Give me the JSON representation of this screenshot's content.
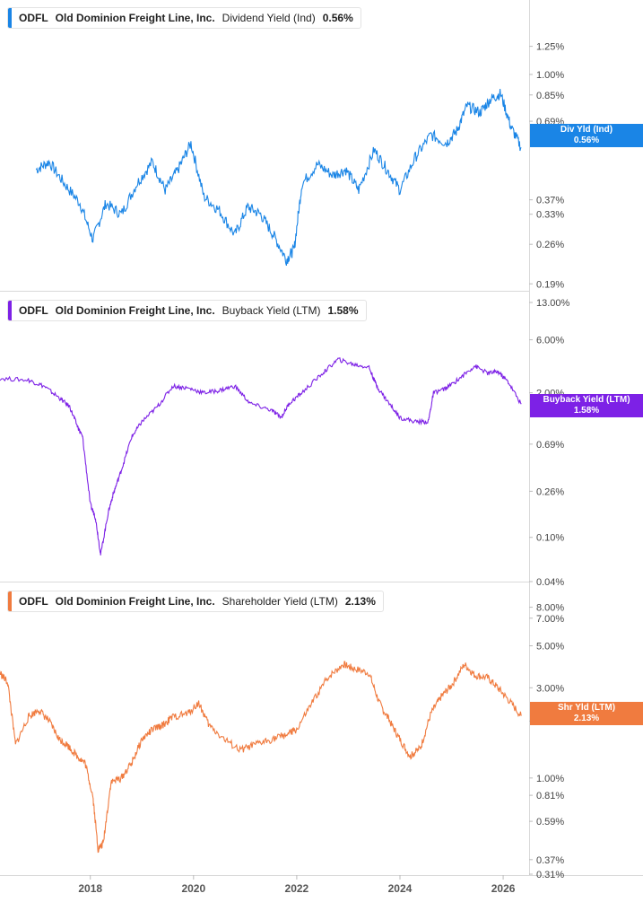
{
  "ticker": "ODFL",
  "company": "Old Dominion Freight Line, Inc.",
  "x_axis": {
    "ticks": [
      "2018",
      "2020",
      "2022",
      "2024",
      "2026"
    ]
  },
  "chart_data": [
    {
      "type": "line",
      "scale": "log",
      "metric_label": "Dividend Yield (Ind)",
      "current_value": "0.56%",
      "badge": {
        "line1": "Div Yld (Ind)",
        "line2": "0.56%"
      },
      "color": "#1a85e6",
      "y_ticks": [
        "1.25%",
        "1.00%",
        "0.85%",
        "0.69%",
        "0.37%",
        "0.33%",
        "0.26%",
        "0.19%"
      ],
      "y_range": [
        0.185,
        1.5
      ],
      "series": [
        {
          "x": [
            2016.95,
            2017.2,
            2017.5,
            2017.8,
            2018.05,
            2018.3,
            2018.6,
            2018.9,
            2019.2,
            2019.45,
            2019.7,
            2019.95,
            2020.2,
            2020.5,
            2020.8,
            2021.05,
            2021.3,
            2021.55,
            2021.8,
            2021.95,
            2022.1,
            2022.4,
            2022.7,
            2022.95,
            2023.2,
            2023.5,
            2023.75,
            2024.0,
            2024.3,
            2024.6,
            2024.9,
            2025.1,
            2025.3,
            2025.55,
            2025.75,
            2025.95,
            2026.15,
            2026.35
          ],
          "y": [
            0.47,
            0.5,
            0.42,
            0.36,
            0.27,
            0.36,
            0.33,
            0.42,
            0.5,
            0.4,
            0.47,
            0.58,
            0.38,
            0.34,
            0.28,
            0.35,
            0.33,
            0.28,
            0.23,
            0.25,
            0.42,
            0.49,
            0.45,
            0.47,
            0.4,
            0.55,
            0.47,
            0.4,
            0.52,
            0.62,
            0.58,
            0.64,
            0.78,
            0.74,
            0.82,
            0.86,
            0.66,
            0.56
          ]
        }
      ]
    },
    {
      "type": "line",
      "scale": "log",
      "metric_label": "Buyback Yield (LTM)",
      "current_value": "1.58%",
      "badge": {
        "line1": "Buyback Yield (LTM)",
        "line2": "1.58%"
      },
      "color": "#7d21e6",
      "y_ticks": [
        "13.00%",
        "6.00%",
        "2.00%",
        "0.69%",
        "0.26%",
        "0.10%",
        "0.04%"
      ],
      "y_range": [
        0.04,
        13.0
      ],
      "series": [
        {
          "x": [
            2016.25,
            2016.8,
            2017.1,
            2017.4,
            2017.6,
            2017.75,
            2017.85,
            2018.0,
            2018.1,
            2018.2,
            2018.35,
            2018.45,
            2018.6,
            2018.8,
            2019.0,
            2019.3,
            2019.6,
            2019.9,
            2020.2,
            2020.5,
            2020.8,
            2021.1,
            2021.5,
            2021.7,
            2021.85,
            2022.1,
            2022.5,
            2022.8,
            2023.1,
            2023.4,
            2023.55,
            2023.75,
            2024.0,
            2024.3,
            2024.55,
            2024.65,
            2024.9,
            2025.2,
            2025.45,
            2025.7,
            2025.9,
            2026.1,
            2026.35
          ],
          "y": [
            2.7,
            2.6,
            2.3,
            1.8,
            1.5,
            1.0,
            0.8,
            0.2,
            0.15,
            0.07,
            0.17,
            0.25,
            0.4,
            0.8,
            1.1,
            1.5,
            2.3,
            2.2,
            2.0,
            2.1,
            2.3,
            1.6,
            1.4,
            1.2,
            1.6,
            2.0,
            3.0,
            4.0,
            3.6,
            3.4,
            2.3,
            1.7,
            1.2,
            1.1,
            1.1,
            2.0,
            2.2,
            2.8,
            3.5,
            3.0,
            3.1,
            2.5,
            1.58
          ]
        }
      ]
    },
    {
      "type": "line",
      "scale": "log",
      "metric_label": "Shareholder Yield (LTM)",
      "current_value": "2.13%",
      "badge": {
        "line1": "Shr Yld (LTM)",
        "line2": "2.13%"
      },
      "color": "#f07b3f",
      "y_ticks": [
        "8.00%",
        "7.00%",
        "5.00%",
        "3.00%",
        "2.00%",
        "1.00%",
        "0.81%",
        "0.59%",
        "0.37%",
        "0.31%"
      ],
      "y_range": [
        0.31,
        8.5
      ],
      "series": [
        {
          "x": [
            2016.25,
            2016.4,
            2016.55,
            2016.8,
            2017.0,
            2017.2,
            2017.4,
            2017.55,
            2017.75,
            2017.9,
            2018.05,
            2018.15,
            2018.25,
            2018.4,
            2018.6,
            2018.8,
            2019.0,
            2019.2,
            2019.4,
            2019.6,
            2019.9,
            2020.1,
            2020.3,
            2020.6,
            2020.9,
            2021.2,
            2021.5,
            2021.8,
            2022.0,
            2022.3,
            2022.6,
            2022.9,
            2023.1,
            2023.4,
            2023.6,
            2023.8,
            2024.0,
            2024.2,
            2024.4,
            2024.6,
            2024.8,
            2025.0,
            2025.25,
            2025.45,
            2025.7,
            2025.9,
            2026.1,
            2026.35
          ],
          "y": [
            3.6,
            3.2,
            1.5,
            2.1,
            2.3,
            2.0,
            1.6,
            1.5,
            1.3,
            1.2,
            0.8,
            0.42,
            0.45,
            0.95,
            1.0,
            1.2,
            1.6,
            1.8,
            1.9,
            2.1,
            2.2,
            2.5,
            1.9,
            1.6,
            1.4,
            1.5,
            1.6,
            1.7,
            1.8,
            2.5,
            3.4,
            4.0,
            3.8,
            3.6,
            2.5,
            2.0,
            1.6,
            1.3,
            1.45,
            2.2,
            2.7,
            3.1,
            4.0,
            3.5,
            3.4,
            3.0,
            2.6,
            2.13
          ]
        }
      ]
    }
  ]
}
